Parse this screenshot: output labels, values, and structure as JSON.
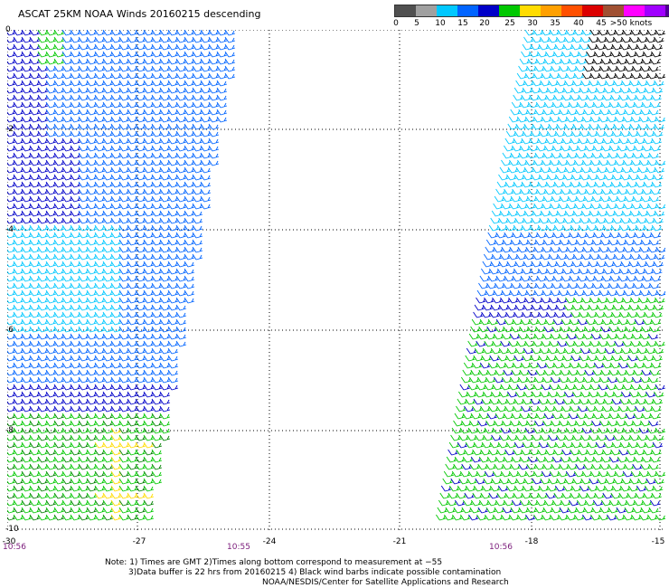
{
  "title": "ASCAT 25KM NOAA Winds 20160215 descending",
  "legend": {
    "colors": [
      "#505050",
      "#a0a0a0",
      "#00c8ff",
      "#0064ff",
      "#0000c8",
      "#00c800",
      "#ffdc00",
      "#ffa000",
      "#ff5000",
      "#dc0000",
      "#a05032",
      "#ff00ff",
      "#a000ff",
      "#500096"
    ],
    "labels": [
      "0",
      "5",
      "10",
      "15",
      "20",
      "25",
      "30",
      "35",
      "40",
      "45",
      ">50 knots"
    ]
  },
  "axes": {
    "lat_labels": [
      "0",
      "-2",
      "-4",
      "-6",
      "-8",
      "-10"
    ],
    "lon_labels": [
      "-30",
      "-27",
      "-24",
      "-21",
      "-18",
      "-15"
    ]
  },
  "times": [
    "10:56",
    "10:55",
    "10:56"
  ],
  "notes": [
    "Note: 1) Times are GMT 2)Times along bottom correspond to measurement at −55",
    "3)Data buffer is 22 hrs from 20160215 4) Black wind barbs indicate possible contamination",
    "NOAA/NESDIS/Center for Satellite Applications and Research"
  ]
}
